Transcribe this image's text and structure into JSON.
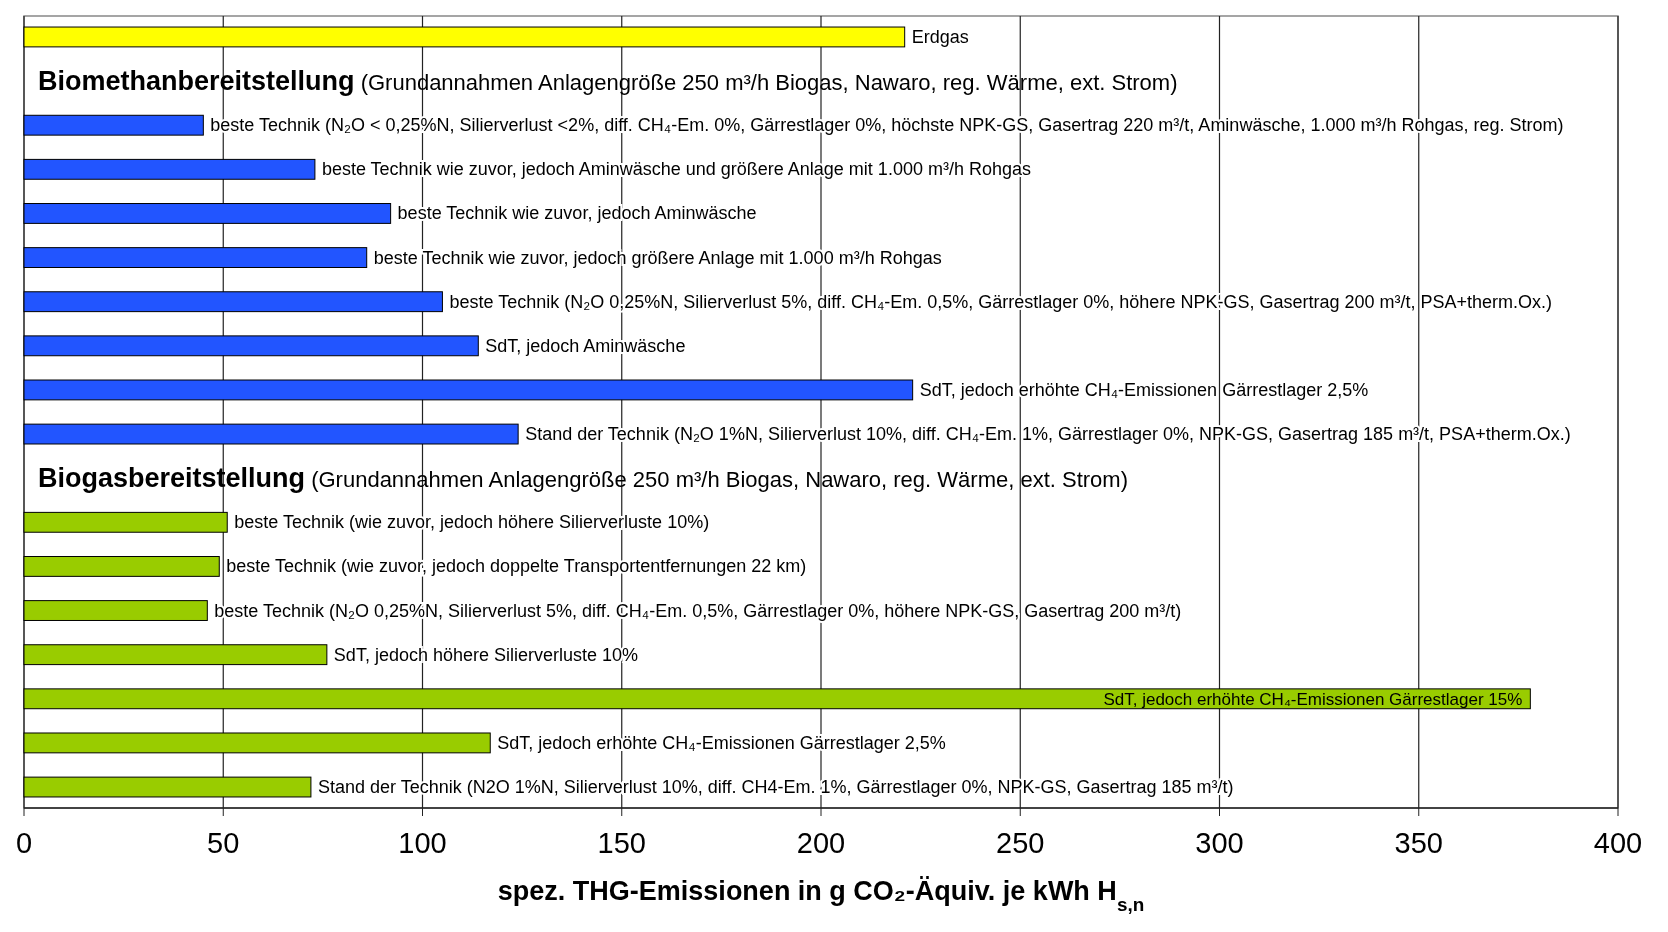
{
  "chart_data": {
    "type": "bar",
    "orientation": "horizontal",
    "xlabel": "spez. THG-Emissionen in g CO₂-Äquiv. je kWh H$_{s,n}$",
    "categories": [
      "Erdgas",
      "Biomethanbereitstellung (Grundannahmen Anlagengröße 250 m³/h Biogas, Nawaro, reg. Wärme, ext. Strom)",
      "beste Technik (N₂O < 0,25%N, Silierverlust <2%, diff. CH₄-Em. 0%, Gärrestlager 0%, höchste NPK-GS, Gasertrag 220 m³/t, Aminwäsche, 1.000 m³/h Rohgas, reg. Strom)",
      "beste Technik wie zuvor, jedoch Aminwäsche und größere Anlage mit 1.000 m³/h Rohgas",
      "beste Technik wie zuvor, jedoch Aminwäsche",
      "beste Technik wie zuvor, jedoch größere Anlage mit 1.000 m³/h Rohgas",
      "beste Technik (N₂O 0,25%N, Silierverlust 5%, diff. CH₄-Em. 0,5%, Gärrestlager 0%, höhere NPK-GS, Gasertrag 200 m³/t, PSA+therm.Ox.)",
      "SdT, jedoch Aminwäsche",
      "SdT, jedoch erhöhte CH₄-Emissionen Gärrestlager 2,5%",
      "Stand der Technik (N₂O 1%N, Silierverlust 10%, diff. CH₄-Em. 1%, Gärrestlager 0%, NPK-GS, Gasertrag 185 m³/t, PSA+therm.Ox.)",
      "Biogasbereitstellung (Grundannahmen Anlagengröße 250 m³/h Biogas, Nawaro, reg. Wärme, ext. Strom)",
      "beste Technik (wie zuvor, jedoch höhere Silierverluste 10%)",
      "beste Technik (wie zuvor, jedoch doppelte Transportentfernungen 22 km)",
      "beste Technik (N₂O 0,25%N, Silierverlust 5%, diff. CH₄-Em. 0,5%, Gärrestlager 0%, höhere NPK-GS, Gasertrag 200 m³/t)",
      "SdT, jedoch höhere Silierverluste 10%",
      "SdT, jedoch erhöhte CH₄-Emissionen Gärrestlager 15%",
      "SdT, jedoch erhöhte CH₄-Emissionen Gärrestlager 2,5%",
      "Stand der Technik (N2O 1%N, Silierverlust 10%, diff. CH4-Em. 1%, Gärrestlager 0%, NPK-GS, Gasertrag 185 m³/t)"
    ],
    "values": [
      221,
      null,
      45,
      73,
      92,
      86,
      105,
      114,
      223,
      124,
      null,
      51,
      49,
      46,
      76,
      378,
      117,
      72
    ],
    "colors": [
      "#ffff00",
      null,
      "#2255ff",
      "#2255ff",
      "#2255ff",
      "#2255ff",
      "#2255ff",
      "#2255ff",
      "#2255ff",
      "#2255ff",
      null,
      "#99cc00",
      "#99cc00",
      "#99cc00",
      "#99cc00",
      "#99cc00",
      "#99cc00",
      "#99cc00"
    ],
    "xlim": [
      0,
      400
    ],
    "xticks": [
      0,
      50,
      100,
      150,
      200,
      250,
      300,
      350,
      400
    ],
    "grid": "x"
  }
}
